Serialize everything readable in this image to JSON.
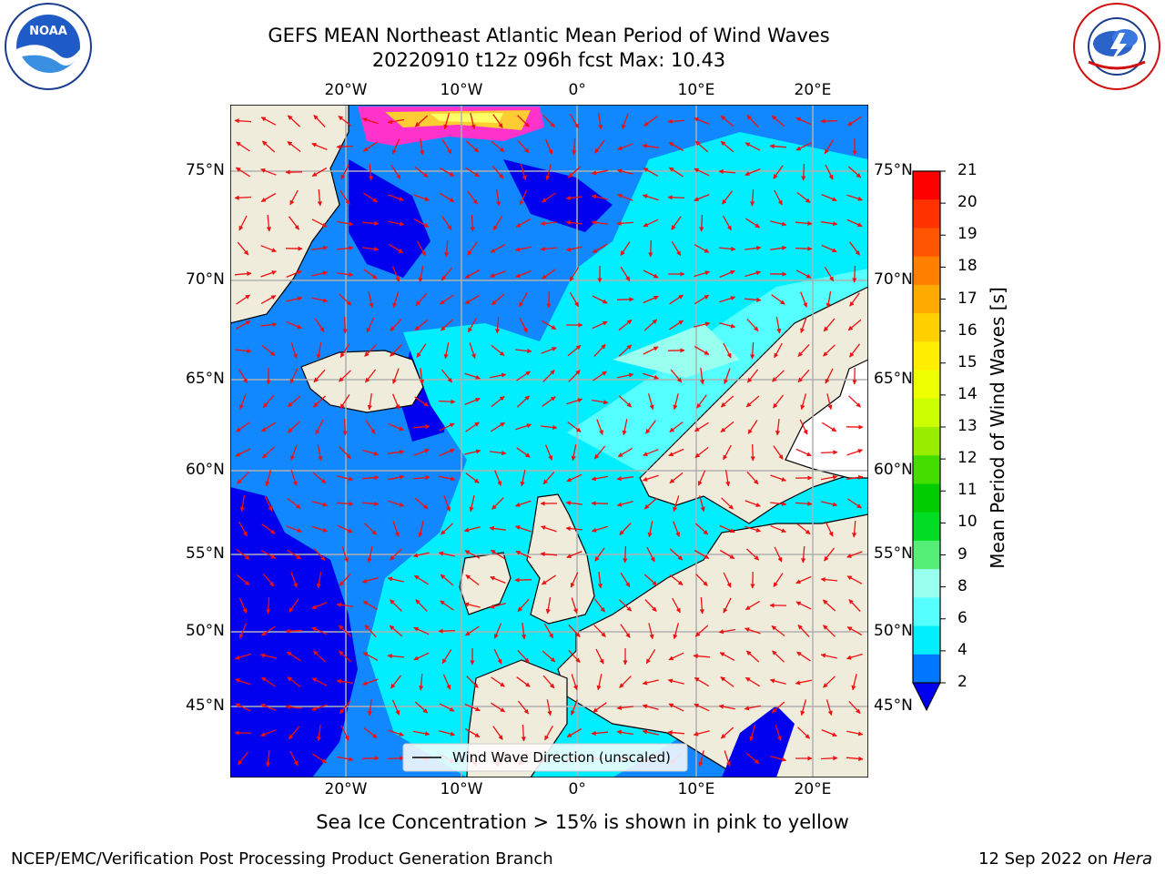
{
  "header": {
    "title_line1": "GEFS MEAN Northeast Atlantic Mean Period of Wind Waves",
    "title_line2": "20220910 t12z 096h fcst   Max: 10.43"
  },
  "logos": {
    "left": {
      "name": "NOAA",
      "ring_text": "NATIONAL OCEANIC AND ATMOSPHERIC ADMINISTRATION",
      "ring_text_bottom": "U.S. DEPARTMENT OF COMMERCE"
    },
    "right": {
      "name": "NATIONAL WEATHER SERVICE"
    }
  },
  "map": {
    "lon_labels": [
      "20°W",
      "10°W",
      "0°",
      "10°E",
      "20°E"
    ],
    "lat_labels": [
      "75°N",
      "70°N",
      "65°N",
      "60°N",
      "55°N",
      "50°N",
      "45°N"
    ],
    "legend_label": "Wind Wave Direction (unscaled)",
    "arrow_color": "#ee1111",
    "land_color": "#efecdc",
    "ice_colors": [
      "#ff33cc",
      "#ffcc33",
      "#ffff66"
    ]
  },
  "colorbar": {
    "label": "Mean Period of Wind Waves [s]",
    "ticks": [
      "21",
      "20",
      "19",
      "18",
      "17",
      "16",
      "15",
      "14",
      "13",
      "12",
      "11",
      "10",
      "9",
      "8",
      "6",
      "4",
      "2"
    ],
    "colors": [
      "#ff0000",
      "#ff3300",
      "#ff5500",
      "#ff8000",
      "#ffaa00",
      "#ffd000",
      "#ffee00",
      "#eeff00",
      "#ccff00",
      "#99ee00",
      "#44dd00",
      "#00cc00",
      "#00dd22",
      "#55ee77",
      "#99ffee",
      "#55ffff",
      "#00eeff",
      "#0077ff"
    ],
    "extend_color": "#0000ee"
  },
  "note": "Sea Ice Concentration > 15% is shown in pink to yellow",
  "footer": {
    "left": "NCEP/EMC/Verification Post Processing Product Generation Branch",
    "right_date": "12 Sep 2022 on ",
    "right_host": "Hera"
  }
}
